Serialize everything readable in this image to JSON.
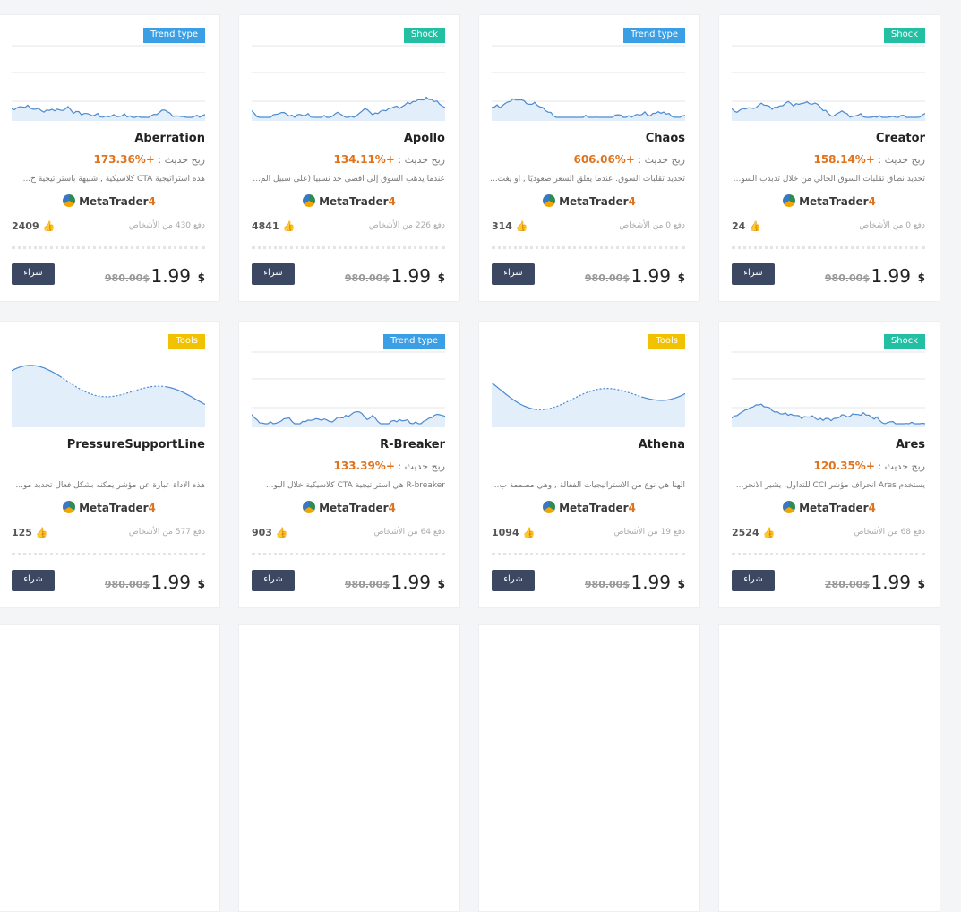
{
  "profit_label": "ربح حديث :",
  "brand": "MetaTrader",
  "brand_version": "4",
  "buy": "شراء",
  "currency": "$",
  "cards": [
    {
      "tag": "Trend type",
      "title": "Aberration",
      "profit": "173.36%+",
      "description": "هذه استراتيجية CTA كلاسيكية , شبيهة باستراتيجية خ...",
      "likes": "2409",
      "people": "دفع 430 من الأشخاص",
      "old_price": "980.00$",
      "price": "1.99"
    },
    {
      "tag": "Shock",
      "title": "Apollo",
      "profit": "134.11%+",
      "description": "عندما يذهب السوق إلى أقصى حد نسبيا (على سبيل الم...",
      "likes": "4841",
      "people": "دفع 226 من الأشخاص",
      "old_price": "980.00$",
      "price": "1.99"
    },
    {
      "tag": "Trend type",
      "title": "Chaos",
      "profit": "606.06%+",
      "description": "تحديد تقلبات السوق. عندما يغلق السعر صعوديًا , أو يغت...",
      "likes": "314",
      "people": "دفع 0 من الأشخاص",
      "old_price": "980.00$",
      "price": "1.99"
    },
    {
      "tag": "Shock",
      "title": "Creator",
      "profit": "158.14%+",
      "description": "تحديد نطاق تقلبات السوق الحالي من خلال تذبذب السو...",
      "likes": "24",
      "people": "دفع 0 من الأشخاص",
      "old_price": "980.00$",
      "price": "1.99"
    },
    {
      "tag": "Tools",
      "title": "PressureSupportLine",
      "description": "هذه الاداة عبارة عن مؤشر يمكنه بشكل فعال تحديد مو...",
      "likes": "125",
      "people": "دفع 577 من الأشخاص",
      "old_price": "980.00$",
      "price": "1.99"
    },
    {
      "tag": "Trend type",
      "title": "R-Breaker",
      "profit": "133.39%+",
      "description": "R-breaker هي استراتيجية CTA كلاسيكية خلال اليو...",
      "likes": "903",
      "people": "دفع 64 من الأشخاص",
      "old_price": "980.00$",
      "price": "1.99"
    },
    {
      "tag": "Tools",
      "title": "Athena",
      "description": "الهنا هي نوع من الاستراتيجيات الفعالة , وهي مصممة ب...",
      "likes": "1094",
      "people": "دفع 19 من الأشخاص",
      "old_price": "980.00$",
      "price": "1.99"
    },
    {
      "tag": "Shock",
      "title": "Ares",
      "profit": "120.35%+",
      "description": "يستخدم Ares انحراف مؤشر CCI للتداول. يشير الانحر...",
      "likes": "2524",
      "people": "دفع 68 من الأشخاص",
      "old_price": "280.00$",
      "price": "1.99"
    }
  ]
}
